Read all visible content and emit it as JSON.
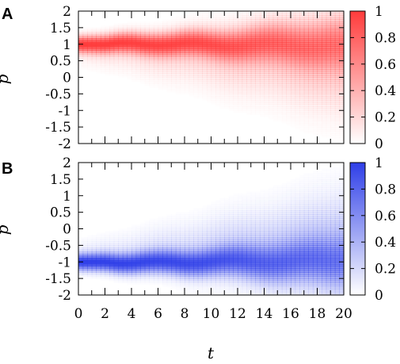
{
  "chart_data": [
    {
      "panel": "A",
      "type": "heatmap",
      "xlabel": "",
      "ylabel": "p",
      "xlim": [
        0,
        20
      ],
      "ylim": [
        -2,
        2
      ],
      "yticks": [
        "2",
        "1.5",
        "1",
        "0.5",
        "0",
        "-0.5",
        "-1",
        "-1.5",
        "-2"
      ],
      "colorbar": {
        "ticks": [
          "1",
          "0.8",
          "0.6",
          "0.4",
          "0.2",
          "0"
        ],
        "range": [
          0,
          1
        ],
        "color": "#ff3b3b"
      },
      "density": {
        "description_of_trend": "narrow peak near p=1 at t=0 that gradually broadens downward toward later t",
        "center_p": [
          1.0,
          1.0,
          1.0,
          1.05,
          1.05,
          1.0,
          0.98,
          1.0,
          1.05,
          1.05,
          1.0,
          0.95,
          0.95,
          1.0,
          1.05,
          1.05,
          1.0,
          0.95,
          0.95,
          1.0,
          1.0
        ],
        "width_p": [
          0.16,
          0.17,
          0.18,
          0.19,
          0.2,
          0.21,
          0.22,
          0.23,
          0.24,
          0.25,
          0.26,
          0.28,
          0.3,
          0.32,
          0.34,
          0.36,
          0.38,
          0.4,
          0.42,
          0.44,
          0.46
        ],
        "peak": [
          1.0,
          0.97,
          0.95,
          0.93,
          0.9,
          0.88,
          0.85,
          0.83,
          0.8,
          0.77,
          0.74,
          0.7,
          0.66,
          0.62,
          0.58,
          0.55,
          0.52,
          0.49,
          0.46,
          0.43,
          0.4
        ],
        "tail_direction": -1
      }
    },
    {
      "panel": "B",
      "type": "heatmap",
      "xlabel": "t",
      "ylabel": "p",
      "xlim": [
        0,
        20
      ],
      "ylim": [
        -2,
        2
      ],
      "xticks": [
        "0",
        "2",
        "4",
        "6",
        "8",
        "10",
        "12",
        "14",
        "16",
        "18",
        "20"
      ],
      "yticks": [
        "2",
        "1.5",
        "1",
        "0.5",
        "0",
        "-0.5",
        "-1",
        "-1.5",
        "-2"
      ],
      "colorbar": {
        "ticks": [
          "1",
          "0.8",
          "0.6",
          "0.4",
          "0.2",
          "0"
        ],
        "range": [
          0,
          1
        ],
        "color": "#2f3fe8"
      },
      "density": {
        "description_of_trend": "narrow peak near p=-1 at t=0 that gradually broadens upward toward later t",
        "center_p": [
          -1.0,
          -1.0,
          -1.0,
          -1.05,
          -1.05,
          -1.0,
          -0.98,
          -1.0,
          -1.05,
          -1.05,
          -1.0,
          -0.95,
          -0.95,
          -1.0,
          -1.05,
          -1.05,
          -1.0,
          -0.95,
          -0.95,
          -1.0,
          -1.0
        ],
        "width_p": [
          0.16,
          0.17,
          0.18,
          0.19,
          0.2,
          0.21,
          0.22,
          0.23,
          0.24,
          0.25,
          0.26,
          0.28,
          0.3,
          0.32,
          0.34,
          0.36,
          0.38,
          0.4,
          0.42,
          0.44,
          0.46
        ],
        "peak": [
          1.0,
          0.97,
          0.95,
          0.93,
          0.9,
          0.88,
          0.85,
          0.83,
          0.8,
          0.77,
          0.74,
          0.7,
          0.66,
          0.62,
          0.58,
          0.55,
          0.52,
          0.49,
          0.46,
          0.43,
          0.4
        ],
        "tail_direction": 1
      }
    }
  ]
}
